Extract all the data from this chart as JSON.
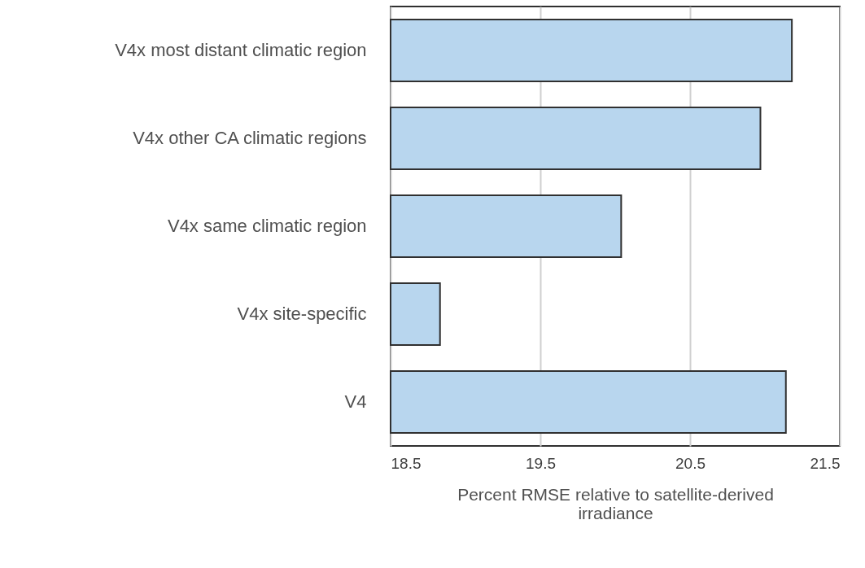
{
  "chart_data": {
    "type": "bar",
    "orientation": "horizontal",
    "categories": [
      "V4x most distant climatic region",
      "V4x other CA climatic regions",
      "V4x same climatic region",
      "V4x site-specific",
      "V4"
    ],
    "values": [
      21.18,
      20.97,
      20.04,
      18.83,
      21.14
    ],
    "color": "#b8d6ee",
    "xlim": [
      18.5,
      21.5
    ],
    "xticks": [
      18.5,
      19.5,
      20.5,
      21.5
    ],
    "grid": "x",
    "xlabel": "Percent RMSE relative to satellite-derived irradiance"
  }
}
